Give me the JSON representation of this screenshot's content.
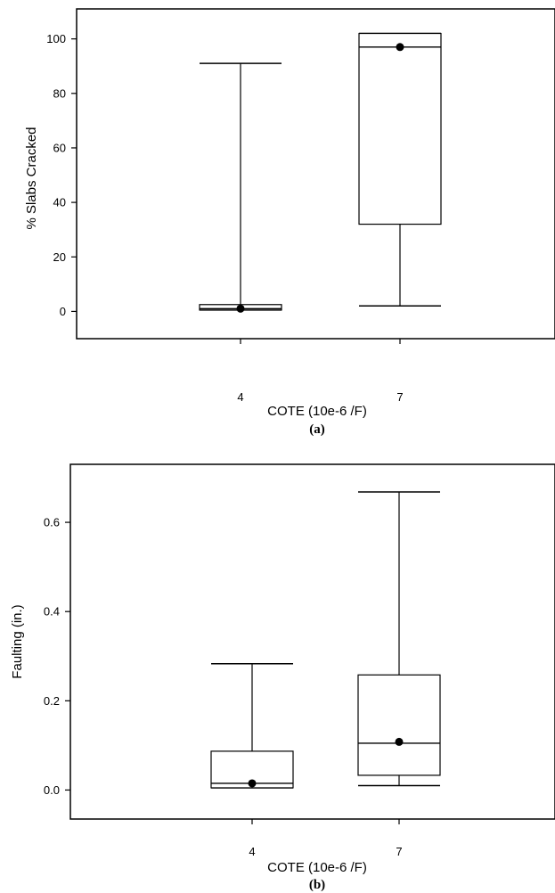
{
  "chart_data": [
    {
      "type": "box",
      "panel_label": "(a)",
      "xlabel": "COTE (10e-6 /F)",
      "ylabel": "% Slabs Cracked",
      "categories": [
        "4",
        "7"
      ],
      "yticks": [
        "0",
        "20",
        "40",
        "60",
        "80",
        "100"
      ],
      "ytick_values": [
        0,
        20,
        40,
        60,
        80,
        100
      ],
      "ylim": [
        -10,
        111
      ],
      "boxes": [
        {
          "category": "4",
          "whisker_low": 0.5,
          "q1": 0.5,
          "median": 1,
          "q3": 2.5,
          "whisker_high": 91,
          "mean": 1
        },
        {
          "category": "7",
          "whisker_low": 2,
          "q1": 32,
          "median": 97,
          "q3": 102,
          "whisker_high": 102,
          "mean": 97
        }
      ]
    },
    {
      "type": "box",
      "panel_label": "(b)",
      "xlabel": "COTE (10e-6 /F)",
      "ylabel": "Faulting (in.)",
      "categories": [
        "4",
        "7"
      ],
      "yticks": [
        "0.0",
        "0.2",
        "0.4",
        "0.6"
      ],
      "ytick_values": [
        0,
        0.2,
        0.4,
        0.6
      ],
      "ylim": [
        -0.065,
        0.73
      ],
      "boxes": [
        {
          "category": "4",
          "whisker_low": 0.005,
          "q1": 0.005,
          "median": 0.015,
          "q3": 0.087,
          "whisker_high": 0.283,
          "mean": 0.015
        },
        {
          "category": "7",
          "whisker_low": 0.01,
          "q1": 0.033,
          "median": 0.105,
          "q3": 0.258,
          "whisker_high": 0.668,
          "mean": 0.108
        }
      ]
    }
  ]
}
